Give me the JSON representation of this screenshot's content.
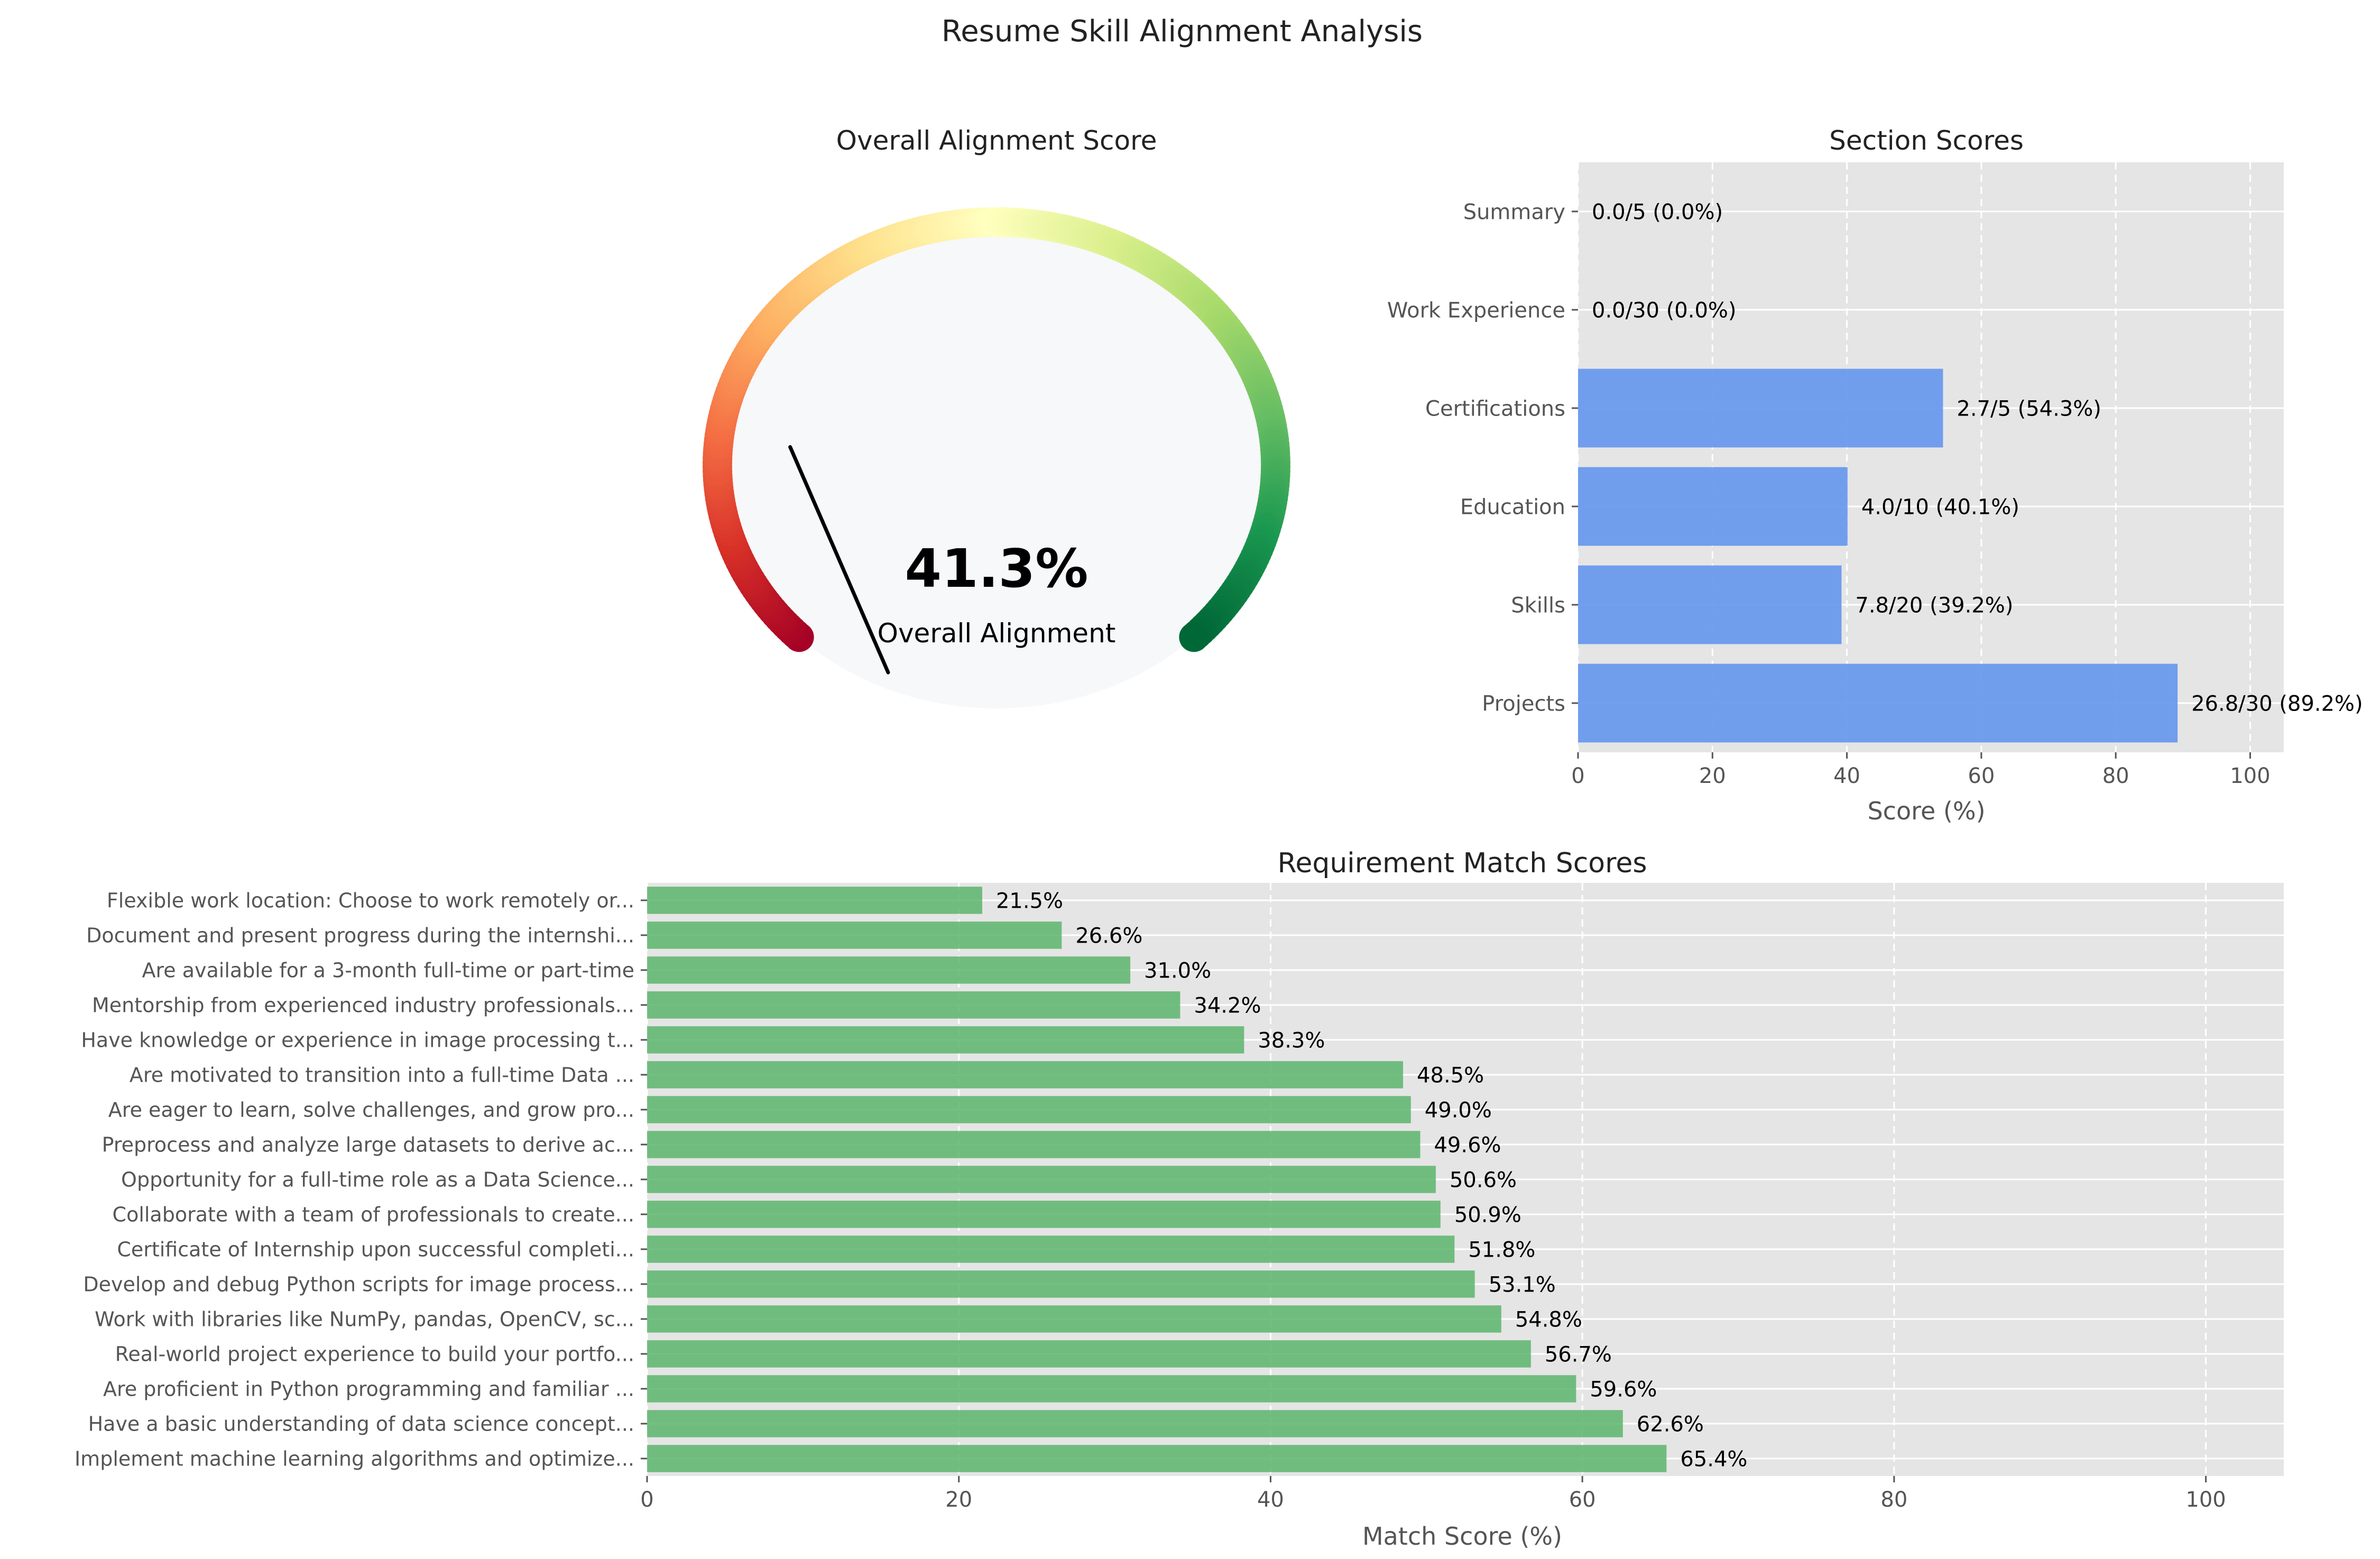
{
  "figure": {
    "title": "Resume Skill Alignment Analysis"
  },
  "chart_data": [
    {
      "type": "gauge",
      "title": "Overall Alignment Score",
      "value": 41.3,
      "value_label": "41.3%",
      "label": "Overall Alignment",
      "range": [
        0,
        100
      ],
      "colormap": "RdYlGn"
    },
    {
      "type": "bar",
      "orientation": "horizontal",
      "title": "Section Scores",
      "xlabel": "Score (%)",
      "ylabel": "",
      "xlim": [
        0,
        105
      ],
      "xticks": [
        0,
        20,
        40,
        60,
        80,
        100
      ],
      "grid": true,
      "bar_color": "#6495ED",
      "categories": [
        "Projects",
        "Skills",
        "Education",
        "Certifications",
        "Work Experience",
        "Summary"
      ],
      "values": [
        89.2,
        39.2,
        40.1,
        54.3,
        0.0,
        0.0
      ],
      "bar_labels": [
        "26.8/30 (89.2%)",
        "7.8/20 (39.2%)",
        "4.0/10 (40.1%)",
        "2.7/5 (54.3%)",
        "0.0/30 (0.0%)",
        "0.0/5 (0.0%)"
      ]
    },
    {
      "type": "bar",
      "orientation": "horizontal",
      "title": "Requirement Match Scores",
      "xlabel": "Match Score (%)",
      "ylabel": "",
      "xlim": [
        0,
        105
      ],
      "xticks": [
        0,
        20,
        40,
        60,
        80,
        100
      ],
      "grid": true,
      "bar_color": "#5CB56C",
      "categories": [
        "Implement machine learning algorithms and optimize...",
        "Have a basic understanding of data science concept...",
        "Are proficient in Python programming and familiar ...",
        "Real-world project experience to build your portfo...",
        "Work with libraries like NumPy, pandas, OpenCV, sc...",
        "Develop and debug Python scripts for image process...",
        "Certificate of Internship upon successful completi...",
        "Collaborate with a team of professionals to create...",
        "Opportunity for a full-time role as a Data Science...",
        "Preprocess and analyze large datasets to derive ac...",
        "Are eager to learn, solve challenges, and grow pro...",
        "Are motivated to transition into a full-time Data ...",
        "Have knowledge or experience in image processing t...",
        "Mentorship from experienced industry professionals...",
        "Are available for a 3-month full-time or part-time",
        "Document and present progress during the internshi...",
        "Flexible work location: Choose to work remotely or..."
      ],
      "values": [
        65.4,
        62.6,
        59.6,
        56.7,
        54.8,
        53.1,
        51.8,
        50.9,
        50.6,
        49.6,
        49.0,
        48.5,
        38.3,
        34.2,
        31.0,
        26.6,
        21.5
      ],
      "bar_labels": [
        "65.4%",
        "62.6%",
        "59.6%",
        "56.7%",
        "54.8%",
        "53.1%",
        "51.8%",
        "50.9%",
        "50.6%",
        "49.6%",
        "49.0%",
        "48.5%",
        "38.3%",
        "34.2%",
        "31.0%",
        "26.6%",
        "21.5%"
      ]
    }
  ]
}
